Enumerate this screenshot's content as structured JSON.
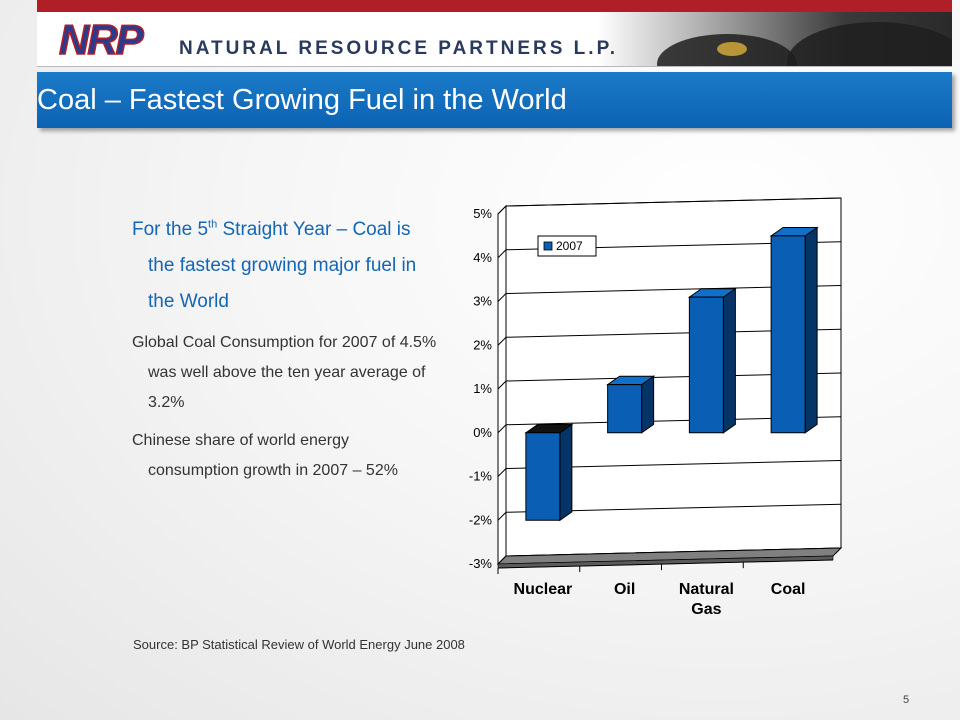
{
  "header": {
    "logo_text": "NRP",
    "company_name": "NATURAL RESOURCE PARTNERS L.P."
  },
  "slide": {
    "title": "Coal – Fastest Growing Fuel in the World",
    "bullets": [
      {
        "pre": "For the 5",
        "sup": "th",
        "post": " Straight Year – Coal is the fastest growing major fuel in the World"
      },
      {
        "text": "Global Coal Consumption for 2007 of 4.5% was well above the ten year average of 3.2%"
      },
      {
        "text": "Chinese share of world energy consumption growth in 2007 – 52%"
      }
    ],
    "source": "Source: BP Statistical Review of World Energy June 2008",
    "page_number": "5"
  },
  "chart_data": {
    "type": "bar",
    "categories": [
      "Nuclear",
      "Oil",
      "Natural Gas",
      "Coal"
    ],
    "series": [
      {
        "name": "2007",
        "values": [
          -2.0,
          1.1,
          3.1,
          4.5
        ],
        "color": "#0a5fb4"
      }
    ],
    "yticks": [
      "5%",
      "4%",
      "3%",
      "2%",
      "1%",
      "0%",
      "-1%",
      "-2%",
      "-3%"
    ],
    "ylim": [
      -3,
      5
    ],
    "grid": true,
    "legend_position": "top-left",
    "three_d": true
  }
}
